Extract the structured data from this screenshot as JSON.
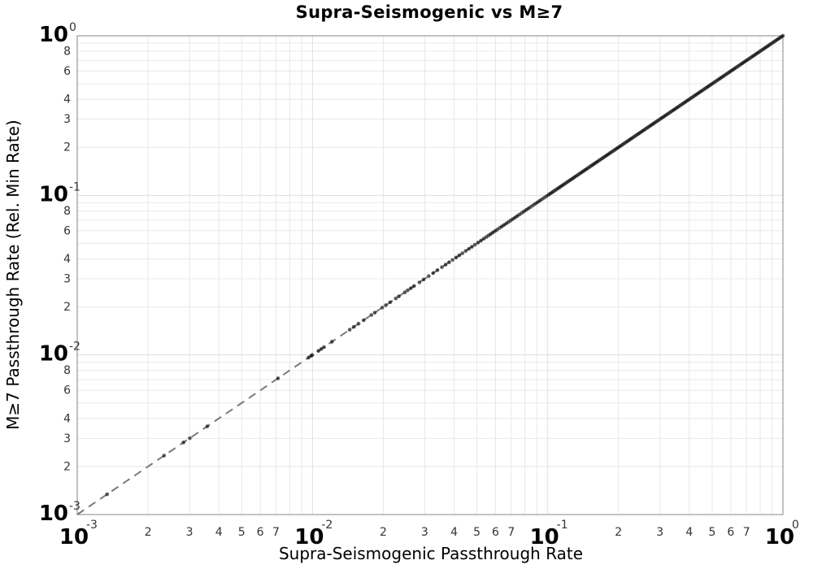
{
  "chart_data": {
    "type": "scatter",
    "title": "Supra-Seismogenic vs M≥7",
    "xlabel": "Supra-Seismogenic Passthrough Rate",
    "ylabel": "M≥7 Passthrough Rate (Rel. Min Rate)",
    "x_scale": "log",
    "y_scale": "log",
    "xlim": [
      0.001,
      1
    ],
    "ylim": [
      0.001,
      1
    ],
    "grid": true,
    "legend": false,
    "x_tick_decades": [
      -3,
      -2,
      -1,
      0
    ],
    "y_tick_decades": [
      -3,
      -2,
      -1,
      0
    ],
    "x_minor_tick_labels": [
      2,
      3,
      4,
      5,
      6,
      7
    ],
    "y_minor_tick_labels": [
      2,
      3,
      4,
      6,
      8
    ],
    "reference_line": {
      "name": "identity line y = x",
      "style": "dashed",
      "color": "#7a7a7a",
      "from": [
        0.001,
        0.001
      ],
      "to": [
        1.0,
        1.0
      ]
    },
    "colors": {
      "grid_minor": "#e8e8e8",
      "grid_major": "#dedede",
      "spine": "#999999",
      "tick_label": "#333333",
      "marker": "#141414",
      "text": "#000000"
    },
    "series": [
      {
        "name": "passthrough rates",
        "marker": "circle",
        "marker_color": "#141414",
        "marker_opacity": 0.7,
        "relation": "y = x (all points lie on the identity line; density increases toward 1)",
        "y_equals_x": true,
        "x": [
          0.00134,
          0.00234,
          0.00283,
          0.00301,
          0.00357,
          0.00714,
          0.00962,
          0.00987,
          0.00998,
          0.0106,
          0.0109,
          0.0112,
          0.0121,
          0.0144,
          0.015,
          0.0157,
          0.0165,
          0.0178,
          0.0184,
          0.0198,
          0.0205,
          0.0214,
          0.0226,
          0.0233,
          0.0247,
          0.0254,
          0.0262,
          0.027,
          0.0285,
          0.0297,
          0.0312,
          0.0326,
          0.034,
          0.0355,
          0.0368,
          0.0381,
          0.0394,
          0.0408,
          0.0421,
          0.0434,
          0.0448,
          0.0462,
          0.0476,
          0.049,
          0.0505,
          0.052,
          0.0535,
          0.0548,
          0.056,
          0.0572,
          0.0585,
          0.0598,
          0.061,
          0.0625,
          0.0638,
          0.0652,
          0.0667,
          0.0681,
          0.0695,
          0.071,
          0.0726,
          0.0742,
          0.0758,
          0.0775,
          0.0792,
          0.081,
          0.0828,
          0.0846,
          0.0865,
          0.0884,
          0.0904,
          0.0924,
          0.0944,
          0.0965,
          0.0986,
          0.1008,
          0.1024,
          0.104,
          0.1056,
          0.1072,
          0.1089,
          0.1106,
          0.1123,
          0.114,
          0.1158,
          0.1176,
          0.1194,
          0.1213,
          0.1232,
          0.1251,
          0.127,
          0.129,
          0.131,
          0.133,
          0.1351,
          0.1372,
          0.1393,
          0.1415,
          0.1437,
          0.1459,
          0.1482,
          0.1505,
          0.1528,
          0.1552,
          0.1576,
          0.16,
          0.1625,
          0.165,
          0.1676,
          0.1702,
          0.1728,
          0.1755,
          0.1782,
          0.181,
          0.1838,
          0.1866,
          0.1895,
          0.1924,
          0.1954,
          0.1984,
          0.2015,
          0.2046,
          0.2078,
          0.211,
          0.2143,
          0.2176,
          0.221,
          0.2244,
          0.2279,
          0.2314,
          0.235,
          0.2386,
          0.2423,
          0.2461,
          0.2499,
          0.2538,
          0.2577,
          0.2617,
          0.2658,
          0.2699,
          0.2741,
          0.2784,
          0.2827,
          0.2871,
          0.2916,
          0.2961,
          0.3007,
          0.3054,
          0.3101,
          0.3149,
          0.3198,
          0.3248,
          0.3298,
          0.3349,
          0.3401,
          0.3454,
          0.3508,
          0.3562,
          0.3617,
          0.3673,
          0.373,
          0.3788,
          0.3847,
          0.3907,
          0.3968,
          0.403,
          0.4093,
          0.4157,
          0.4222,
          0.4288,
          0.4355,
          0.4423,
          0.4492,
          0.4562,
          0.4633,
          0.4705,
          0.4778,
          0.4852,
          0.4927,
          0.5004,
          0.5082,
          0.5161,
          0.5241,
          0.5322,
          0.5405,
          0.5489,
          0.5574,
          0.5661,
          0.5749,
          0.5838,
          0.5929,
          0.6021,
          0.6115,
          0.621,
          0.6307,
          0.6405,
          0.6505,
          0.6606,
          0.6709,
          0.6813,
          0.6919,
          0.7027,
          0.7136,
          0.7247,
          0.736,
          0.7474,
          0.759,
          0.7708,
          0.7828,
          0.795,
          0.8074,
          0.82,
          0.8328,
          0.8458,
          0.859,
          0.8724,
          0.886,
          0.8998,
          0.9138,
          0.928,
          0.9424,
          0.957,
          0.9718,
          0.9868,
          1.0
        ]
      }
    ]
  }
}
